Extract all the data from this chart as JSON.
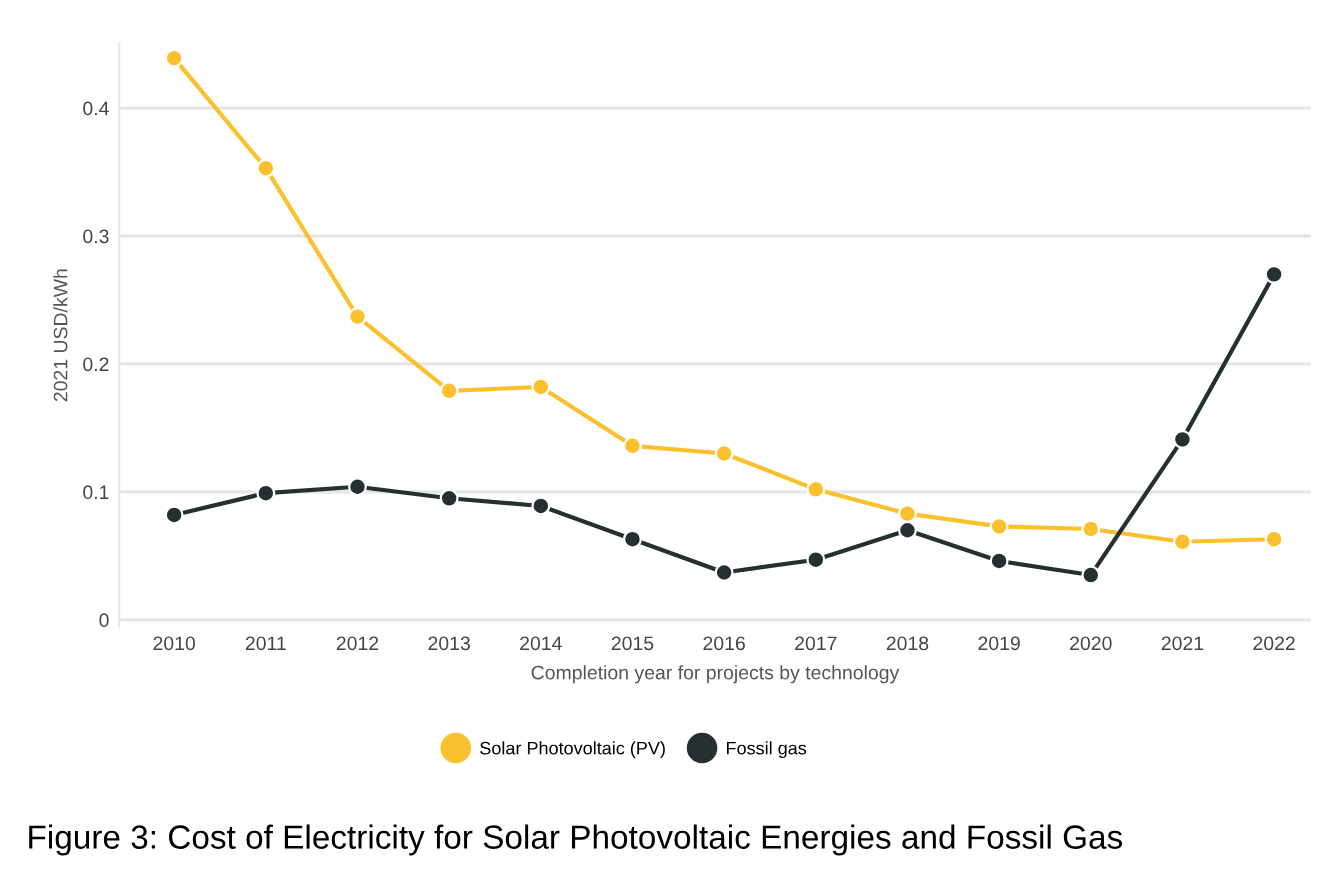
{
  "chart_data": {
    "type": "line",
    "xlabel": "Completion year for projects by technology",
    "ylabel": "2021 USD/kWh",
    "categories": [
      "2010",
      "2011",
      "2012",
      "2013",
      "2014",
      "2015",
      "2016",
      "2017",
      "2018",
      "2019",
      "2020",
      "2021",
      "2022"
    ],
    "series": [
      {
        "name": "Solar Photovoltaic (PV)",
        "color": "#fbc02d",
        "values": [
          0.439,
          0.353,
          0.237,
          0.179,
          0.182,
          0.136,
          0.13,
          0.102,
          0.083,
          0.073,
          0.071,
          0.061,
          0.063
        ]
      },
      {
        "name": "Fossil gas",
        "color": "#263030",
        "values": [
          0.082,
          0.099,
          0.104,
          0.095,
          0.089,
          0.063,
          0.037,
          0.047,
          0.07,
          0.046,
          0.035,
          0.141,
          0.27
        ]
      }
    ],
    "ylim": [
      -0.005,
      0.45
    ],
    "yticks": [
      0,
      0.1,
      0.2,
      0.3,
      0.4
    ],
    "grid": "y",
    "legend": "bottom",
    "marker": "circle",
    "line_style": "solid",
    "annotations": [
      "Figure 3: Cost of Electricity for Solar Photovoltaic Energies and Fossil Gas"
    ]
  }
}
